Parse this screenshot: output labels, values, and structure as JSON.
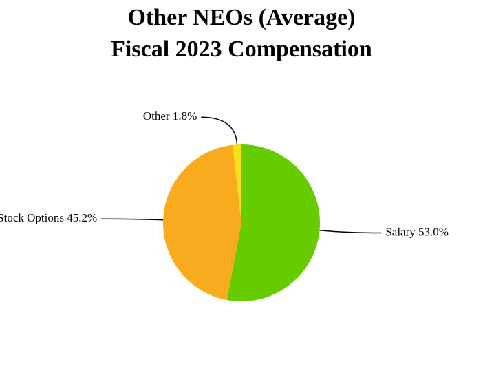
{
  "chart_data": {
    "type": "pie",
    "title": [
      "Other NEOs (Average)",
      "Fiscal 2023 Compensation"
    ],
    "categories": [
      "Salary",
      "Stock Options",
      "Other"
    ],
    "values": [
      53.0,
      45.2,
      1.8
    ],
    "value_labels": [
      "53.0%",
      "45.2%",
      "1.8%"
    ],
    "colors": [
      "#66cc00",
      "#f9ab1e",
      "#f7e01a"
    ]
  }
}
